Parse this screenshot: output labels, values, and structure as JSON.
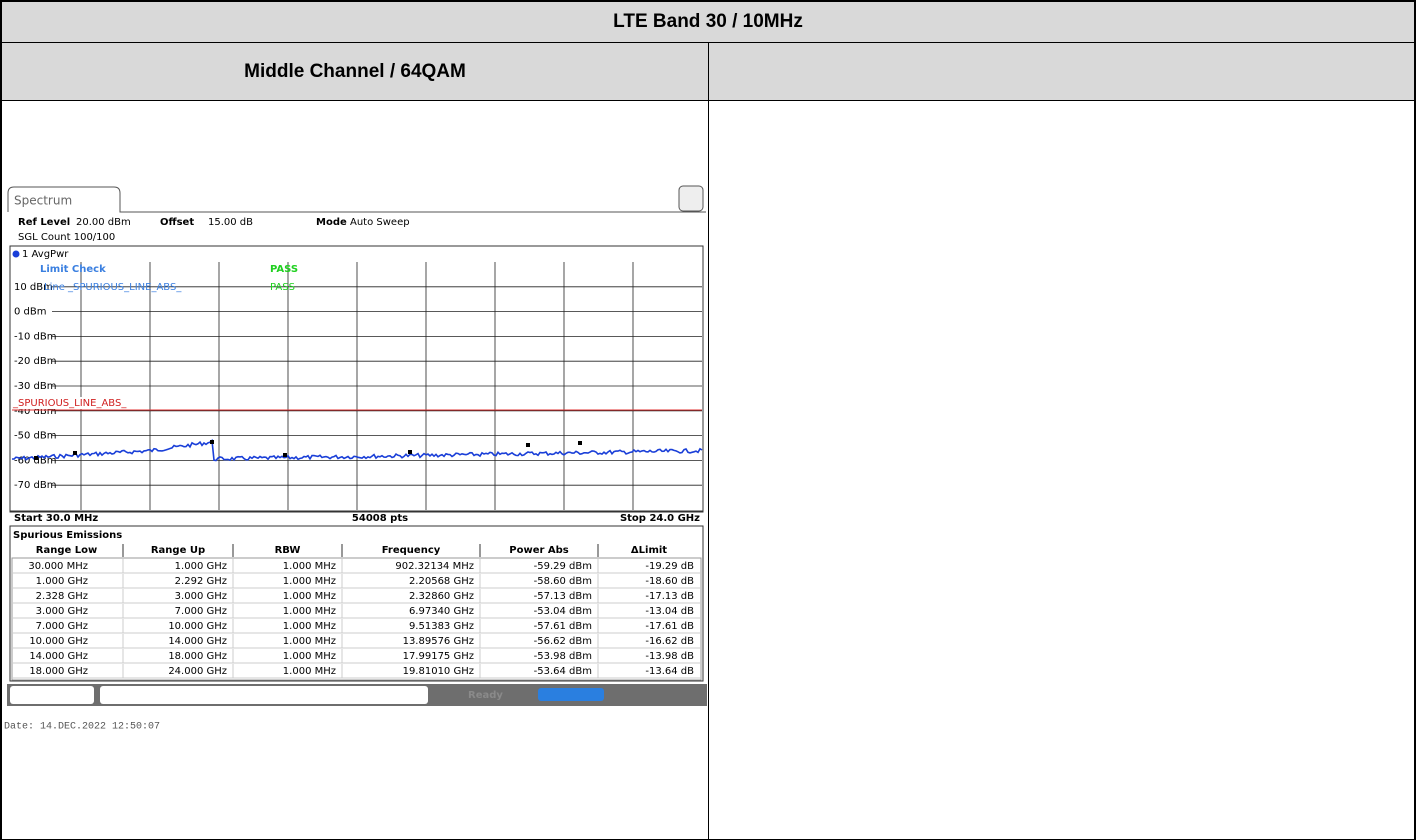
{
  "header": {
    "title": "LTE Band 30 / 10MHz",
    "subtitle": "Middle Channel / 64QAM"
  },
  "spectrum": {
    "tab": "Spectrum",
    "ref_level_label": "Ref Level",
    "ref_level": "20.00 dBm",
    "offset_label": "Offset",
    "offset": "15.00 dB",
    "mode_label": "Mode",
    "mode": "Auto Sweep",
    "sgl_count": "SGL Count 100/100",
    "trace_name": "1 AvgPwr",
    "limit_check": "Limit Check",
    "limit_result": "PASS",
    "line_name": "Line _SPURIOUS_LINE_ABS_",
    "line_result": "PASS",
    "limit_line_label": "_SPURIOUS_LINE_ABS_",
    "y_labels": [
      "10 dBm",
      "0 dBm",
      "-10 dBm",
      "-20 dBm",
      "-30 dBm",
      "-40 dBm",
      "-50 dBm",
      "-60 dBm",
      "-70 dBm"
    ],
    "start": "Start 30.0 MHz",
    "points": "54008 pts",
    "stop": "Stop 24.0 GHz",
    "status": "Ready"
  },
  "table": {
    "title": "Spurious Emissions",
    "columns": [
      "Range Low",
      "Range Up",
      "RBW",
      "Frequency",
      "Power Abs",
      "ΔLimit"
    ],
    "rows": [
      [
        "30.000 MHz",
        "1.000 GHz",
        "1.000 MHz",
        "902.32134 MHz",
        "-59.29 dBm",
        "-19.29 dB"
      ],
      [
        "1.000 GHz",
        "2.292 GHz",
        "1.000 MHz",
        "2.20568 GHz",
        "-58.60 dBm",
        "-18.60 dB"
      ],
      [
        "2.328 GHz",
        "3.000 GHz",
        "1.000 MHz",
        "2.32860 GHz",
        "-57.13 dBm",
        "-17.13 dB"
      ],
      [
        "3.000 GHz",
        "7.000 GHz",
        "1.000 MHz",
        "6.97340 GHz",
        "-53.04 dBm",
        "-13.04 dB"
      ],
      [
        "7.000 GHz",
        "10.000 GHz",
        "1.000 MHz",
        "9.51383 GHz",
        "-57.61 dBm",
        "-17.61 dB"
      ],
      [
        "10.000 GHz",
        "14.000 GHz",
        "1.000 MHz",
        "13.89576 GHz",
        "-56.62 dBm",
        "-16.62 dB"
      ],
      [
        "14.000 GHz",
        "18.000 GHz",
        "1.000 MHz",
        "17.99175 GHz",
        "-53.98 dBm",
        "-13.98 dB"
      ],
      [
        "18.000 GHz",
        "24.000 GHz",
        "1.000 MHz",
        "19.81010 GHz",
        "-53.64 dBm",
        "-13.64 dB"
      ]
    ]
  },
  "date": "Date: 14.DEC.2022  12:50:07"
}
